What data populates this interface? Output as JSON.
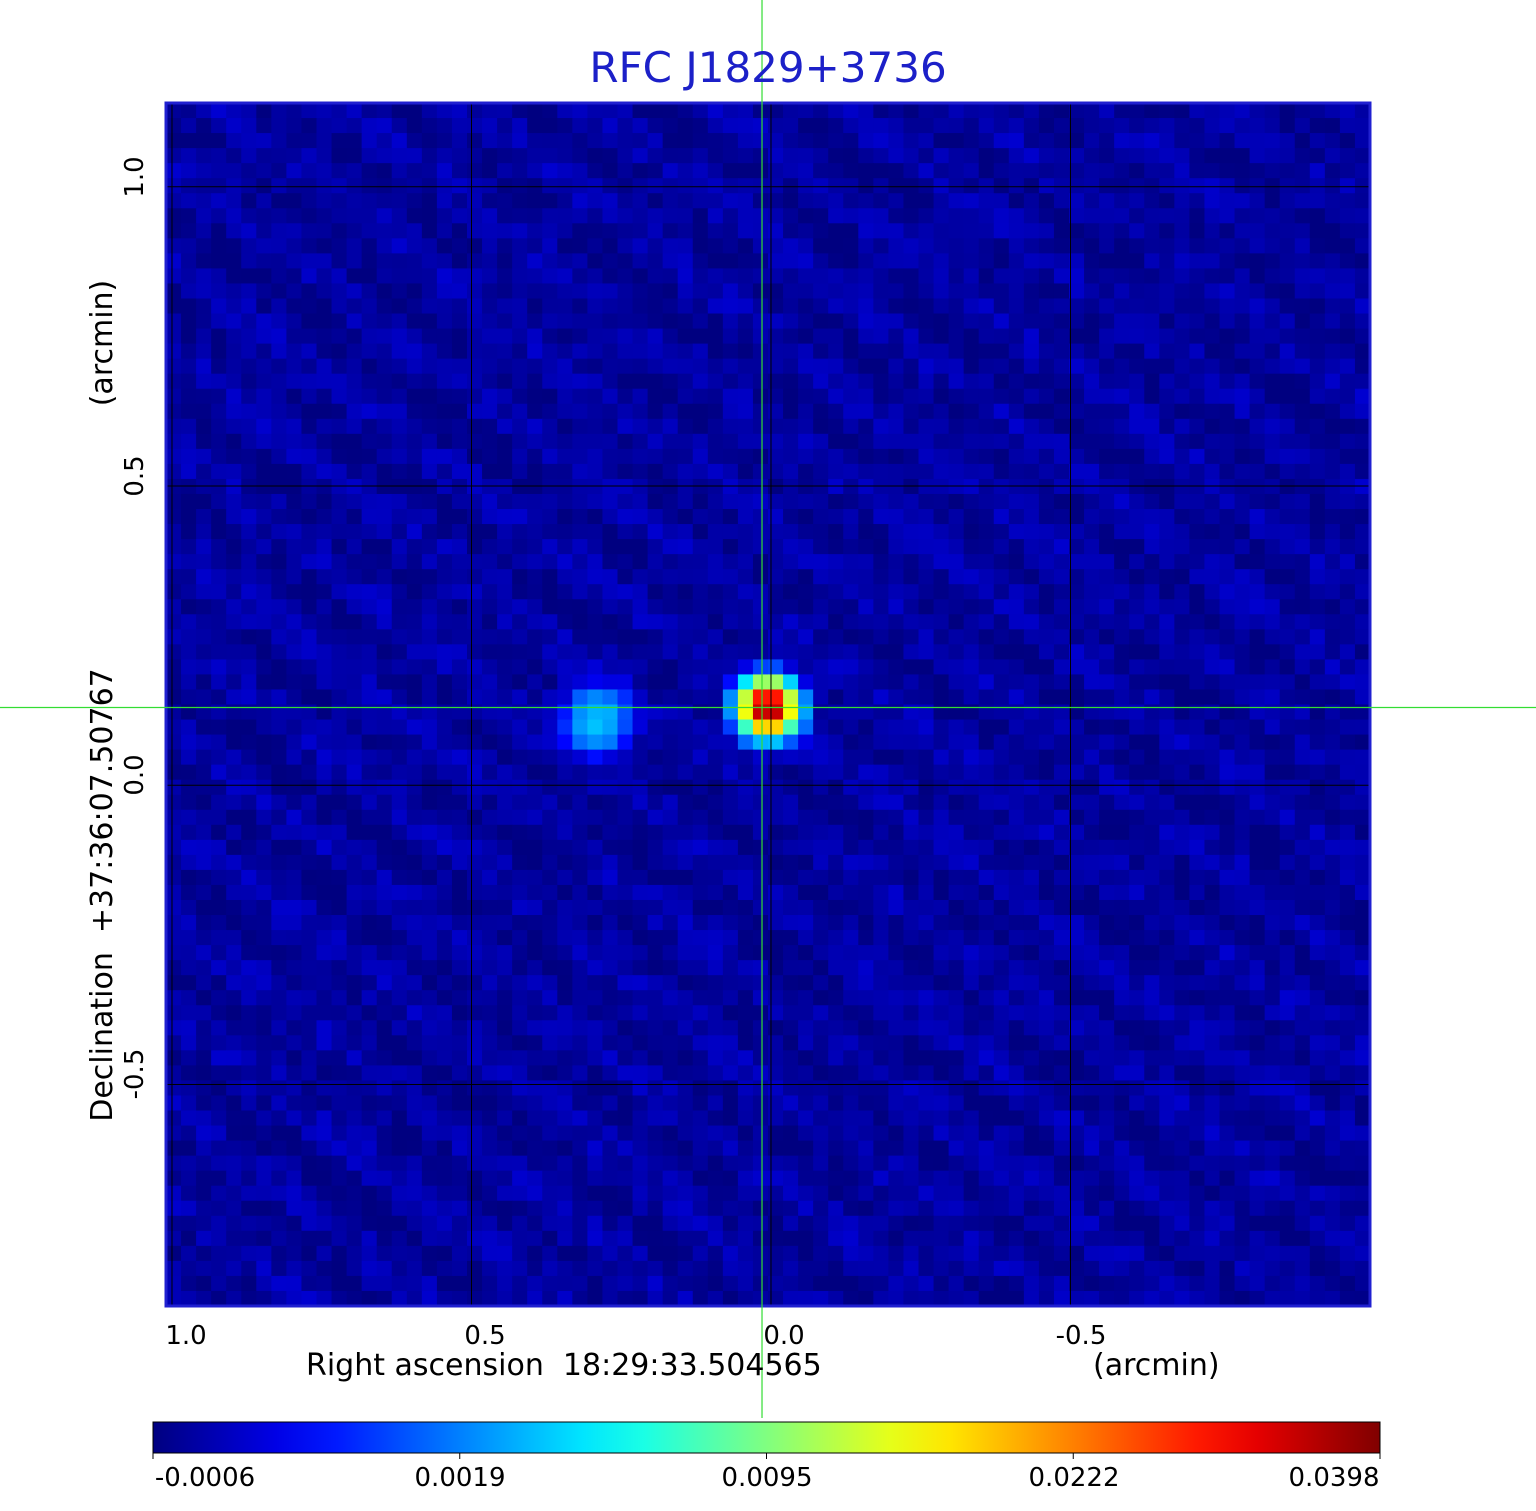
{
  "chart_data": {
    "type": "heatmap",
    "title": "RFC J1829+3736",
    "xlabel": "Right ascension  18:29:33.504565",
    "xunit": "(arcmin)",
    "ylabel": "Declination  +37:36:07.50767",
    "yunit": "(arcmin)",
    "xlim": [
      1.01,
      -1.0
    ],
    "ylim": [
      -0.87,
      1.14
    ],
    "x_ticks": [
      "1.0",
      "0.5",
      "0.0",
      "-0.5"
    ],
    "x_tick_values": [
      1.0,
      0.5,
      0.0,
      -0.5
    ],
    "y_ticks": [
      "1.0",
      "0.5",
      "0.0",
      "-0.5"
    ],
    "y_tick_values": [
      1.0,
      0.5,
      0.0,
      -0.5
    ],
    "grid": true,
    "crosshair": {
      "x": 0.015,
      "y": 0.13,
      "color": "#33dd33"
    },
    "colormap": "jet",
    "colorbar_ticks": [
      "-0.0006",
      "0.0019",
      "0.0095",
      "0.0222",
      "0.0398"
    ],
    "colorbar_values": [
      -0.0006,
      0.0019,
      0.0095,
      0.0222,
      0.0398
    ],
    "sources": [
      {
        "x": 0.005,
        "y": 0.13,
        "peak": 0.0398
      },
      {
        "x": 0.29,
        "y": 0.11,
        "peak": 0.0045
      }
    ],
    "background": -0.0003
  }
}
